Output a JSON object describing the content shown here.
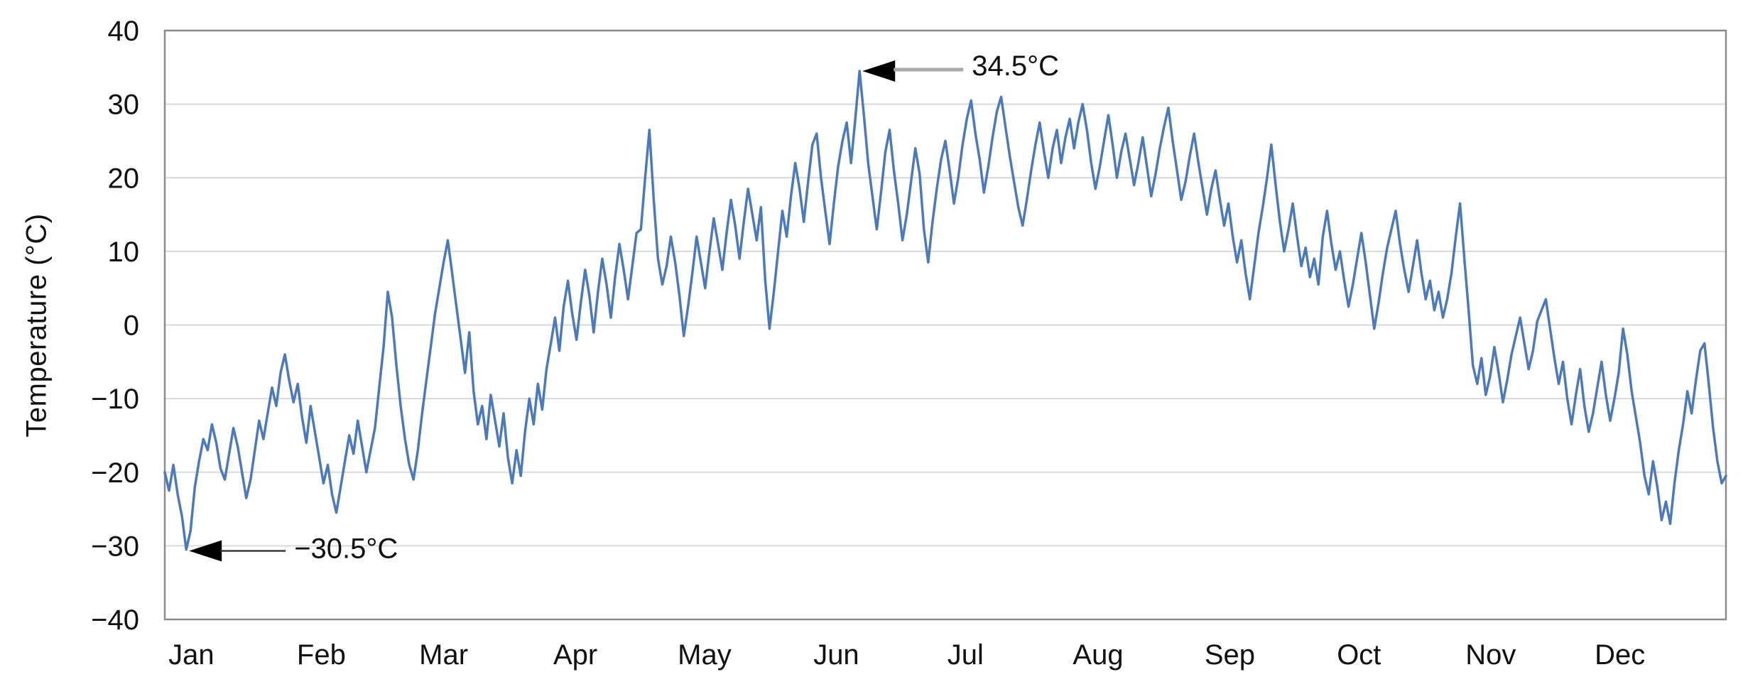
{
  "chart_data": {
    "type": "line",
    "title": "",
    "xlabel": "",
    "ylabel": "Temperature (°C)",
    "ylim": [
      -40,
      40
    ],
    "y_tick_step": 10,
    "y_tick_labels": [
      "40",
      "30",
      "20",
      "10",
      "0",
      "−10",
      "−20",
      "−30",
      "−40"
    ],
    "y_tick_values": [
      40,
      30,
      20,
      10,
      0,
      -10,
      -20,
      -30,
      -40
    ],
    "categories": [
      "Jan",
      "Feb",
      "Mar",
      "Apr",
      "May",
      "Jun",
      "Jul",
      "Aug",
      "Sep",
      "Oct",
      "Nov",
      "Dec"
    ],
    "days_per_month": [
      31,
      28,
      31,
      30,
      31,
      30,
      31,
      31,
      30,
      31,
      30,
      31
    ],
    "grid": "horizontal",
    "legend": "none",
    "series": [
      {
        "name": "Daily temperature (°C)",
        "monthly_values": [
          [
            -20,
            -22.5,
            -19,
            -23,
            -26,
            -30.5,
            -28,
            -22,
            -18.5,
            -15.5,
            -17,
            -13.5,
            -16,
            -19.5,
            -21,
            -17.5,
            -14,
            -16.5,
            -20,
            -23.5,
            -21,
            -17,
            -13,
            -15.5,
            -12,
            -8.5,
            -11,
            -6.5,
            -4,
            -7.5,
            -10.5
          ],
          [
            -8,
            -12.5,
            -16,
            -11,
            -14.5,
            -18,
            -21.5,
            -19,
            -23,
            -25.5,
            -22,
            -18.5,
            -15,
            -17.5,
            -13,
            -16.5,
            -20,
            -17,
            -14,
            -8.5,
            -3,
            4.5,
            1,
            -5.5,
            -11,
            -15.5,
            -19,
            -21
          ],
          [
            -17,
            -12,
            -7.5,
            -3,
            1.5,
            5,
            8.5,
            11.5,
            7,
            2.5,
            -2,
            -6.5,
            -1,
            -9,
            -13.5,
            -11,
            -15.5,
            -9.5,
            -13,
            -16.5,
            -12,
            -18,
            -21.5,
            -17,
            -20.5,
            -14.5,
            -10,
            -13.5,
            -8,
            -11.5,
            -6
          ],
          [
            -2.5,
            1,
            -3.5,
            2.5,
            6,
            1.5,
            -2,
            3,
            7.5,
            4,
            -1,
            4.5,
            9,
            5.5,
            1,
            6.5,
            11,
            7.5,
            3.5,
            8,
            12.5,
            13,
            20,
            26.5,
            17,
            9,
            5.5,
            8,
            12,
            8.5
          ],
          [
            4,
            -1.5,
            2.5,
            7,
            12,
            8.5,
            5,
            10,
            14.5,
            11,
            7.5,
            12.5,
            17,
            13.5,
            9,
            14,
            18.5,
            15,
            11.5,
            16,
            6,
            -0.5,
            4.5,
            10,
            15.5,
            12,
            17.5,
            22,
            18.5,
            14,
            19.5
          ],
          [
            24.5,
            26,
            20,
            15.5,
            11,
            16.5,
            21.5,
            25,
            27.5,
            22,
            28,
            34.5,
            28.5,
            22,
            17.5,
            13,
            18,
            23.5,
            26.5,
            21,
            16.5,
            11.5,
            15,
            19.5,
            24,
            20.5,
            13,
            8.5,
            14,
            18.5
          ],
          [
            22.5,
            25,
            21,
            16.5,
            20,
            24.5,
            28,
            30.5,
            26,
            22.5,
            18,
            21.5,
            25.5,
            29,
            31,
            27,
            23,
            19.5,
            16,
            13.5,
            17,
            21,
            24.5,
            27.5,
            23.5,
            20,
            24,
            26.5,
            22,
            25.5,
            28
          ],
          [
            24,
            27.5,
            30,
            26.5,
            22,
            18.5,
            21.5,
            25,
            28.5,
            24.5,
            20,
            23.5,
            26,
            22.5,
            19,
            22,
            25.5,
            21.5,
            17.5,
            20.5,
            24,
            27,
            29.5,
            25,
            21,
            17,
            19.5,
            23,
            26,
            22,
            18.5
          ],
          [
            15,
            18.5,
            21,
            17,
            13.5,
            16.5,
            12,
            8.5,
            11.5,
            7,
            3.5,
            8,
            12.5,
            16,
            20,
            24.5,
            19,
            14,
            10,
            13,
            16.5,
            12,
            8,
            10.5,
            6.5,
            9,
            5.5,
            12,
            15.5,
            11
          ],
          [
            7.5,
            10,
            6,
            2.5,
            5.5,
            9,
            12.5,
            8.5,
            4,
            -0.5,
            3,
            7,
            10.5,
            13,
            15.5,
            11,
            7.5,
            4.5,
            8,
            11.5,
            7,
            3.5,
            6,
            2,
            4.5,
            1,
            3.5,
            7,
            12,
            16.5,
            9
          ],
          [
            2,
            -5.5,
            -8,
            -4.5,
            -9.5,
            -7,
            -3,
            -6.5,
            -10.5,
            -7.5,
            -4,
            -1.5,
            1,
            -2.5,
            -6,
            -3.5,
            0.5,
            2,
            3.5,
            -0.5,
            -4.5,
            -8,
            -5,
            -10,
            -13.5,
            -9.5,
            -6,
            -11,
            -14.5,
            -12
          ],
          [
            -8.5,
            -5,
            -9.5,
            -13,
            -10,
            -6.5,
            -0.5,
            -4,
            -9,
            -12.5,
            -16,
            -20.5,
            -23,
            -18.5,
            -22,
            -26.5,
            -24,
            -27,
            -21.5,
            -17,
            -13.5,
            -9,
            -12,
            -7.5,
            -3.5,
            -2.5,
            -8,
            -14,
            -18.5,
            -21.5,
            -20.5
          ]
        ]
      }
    ],
    "annotations": [
      {
        "type": "max",
        "label": "34.5°C",
        "day_of_year": 163,
        "value": 34.5
      },
      {
        "type": "min",
        "label": "−30.5°C",
        "day_of_year": 6,
        "value": -30.5
      }
    ]
  },
  "style": {
    "line_color": "#4c79bc",
    "grid_color": "#d9d9d9",
    "border_color": "#8c8c8c",
    "text_color": "#111111",
    "arrowhead_color": "#000000",
    "max_leader_color": "#a8a8a8",
    "min_leader_color": "#3a3a3a",
    "background": "#ffffff"
  }
}
